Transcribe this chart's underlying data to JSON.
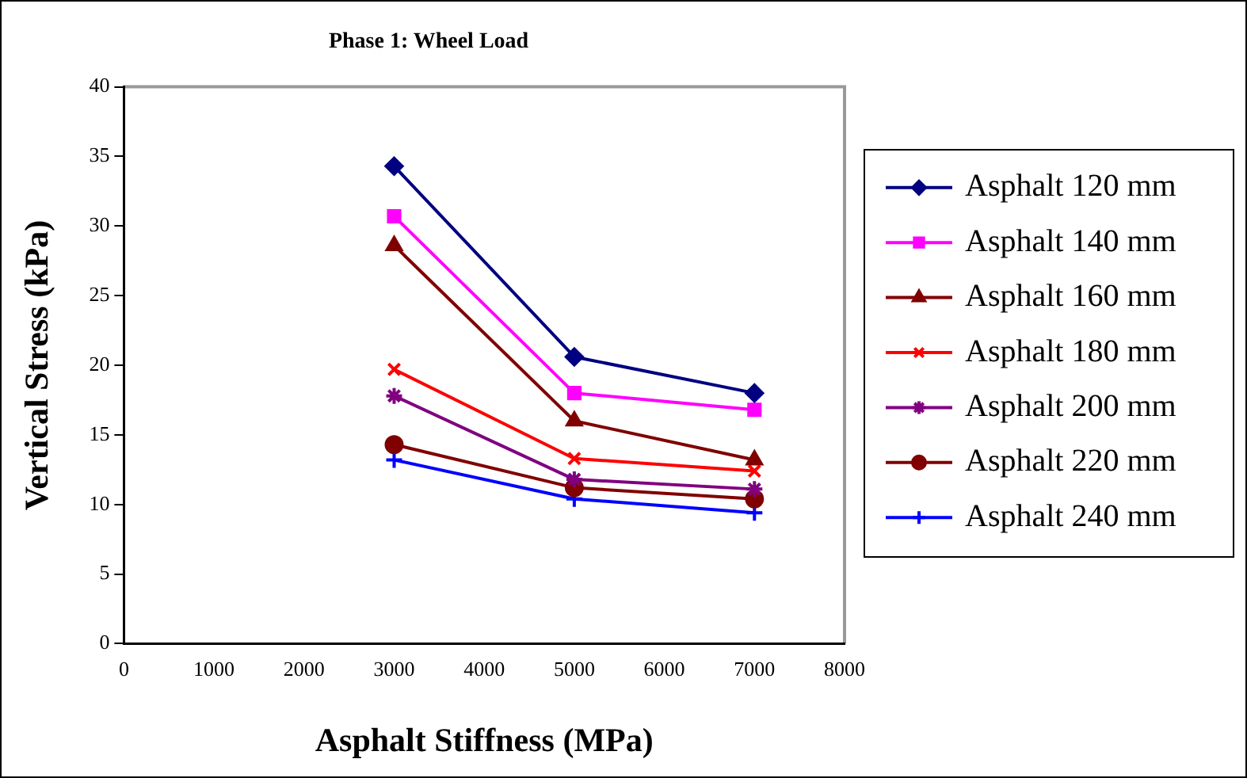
{
  "chart_data": {
    "type": "line",
    "title": "Phase 1: Wheel Load",
    "xlabel": "Asphalt Stiffness (MPa)",
    "ylabel": "Vertical Stress (kPa)",
    "x": [
      3000,
      5000,
      7000
    ],
    "xlim": [
      0,
      8000
    ],
    "xticks": [
      0,
      1000,
      2000,
      3000,
      4000,
      5000,
      6000,
      7000,
      8000
    ],
    "ylim": [
      0,
      40
    ],
    "yticks": [
      0,
      5,
      10,
      15,
      20,
      25,
      30,
      35,
      40
    ],
    "grid": false,
    "legend": "right",
    "line_style": "solid",
    "series": [
      {
        "name": "Asphalt 120 mm",
        "color": "#000080",
        "marker": "diamond",
        "values": [
          34.3,
          20.6,
          18.0
        ]
      },
      {
        "name": "Asphalt 140 mm",
        "color": "#ff00ff",
        "marker": "square",
        "values": [
          30.7,
          18.0,
          16.8
        ]
      },
      {
        "name": "Asphalt 160 mm",
        "color": "#800000",
        "marker": "triangle",
        "values": [
          28.6,
          16.0,
          13.2
        ]
      },
      {
        "name": "Asphalt 180 mm",
        "color": "#ff0000",
        "marker": "cross",
        "values": [
          19.7,
          13.3,
          12.4
        ]
      },
      {
        "name": "Asphalt 200 mm",
        "color": "#800080",
        "marker": "cross",
        "values": [
          17.8,
          11.8,
          11.1
        ]
      },
      {
        "name": "Asphalt 220 mm",
        "color": "#800000",
        "marker": "circle",
        "values": [
          14.3,
          11.2,
          10.4
        ]
      },
      {
        "name": "Asphalt 240 mm",
        "color": "#0000ff",
        "marker": "cross",
        "values": [
          13.2,
          10.4,
          9.4
        ]
      }
    ]
  }
}
